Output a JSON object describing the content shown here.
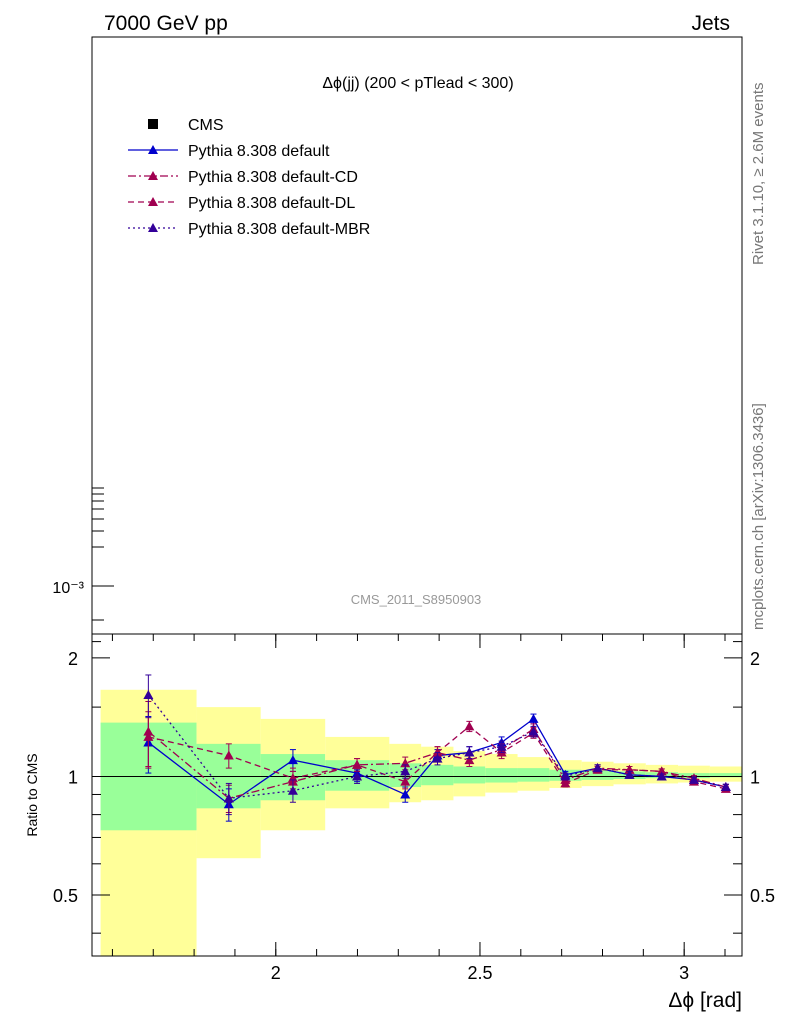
{
  "header": {
    "left": "7000 GeV pp",
    "right": "Jets"
  },
  "side_labels": {
    "rivet": "Rivet 3.1.10, ≥ 2.6M events",
    "mcplots": "mcplots.cern.ch [arXiv:1306.3436]"
  },
  "chart_data": [
    {
      "panel": "main",
      "type": "line",
      "title": "Δϕ(jj) (200 < pTlead <  300)",
      "watermark": "CMS_2011_S8950903",
      "yscale": "log",
      "y_tick_labels": [
        "10⁻³"
      ],
      "legend": {
        "placement": "top-left",
        "entries": [
          {
            "label": "CMS",
            "marker": "square",
            "color": "#000000",
            "line": "none"
          },
          {
            "label": "Pythia 8.308 default",
            "marker": "triangle",
            "color": "#0000cc",
            "line": "solid"
          },
          {
            "label": "Pythia 8.308 default-CD",
            "marker": "triangle",
            "color": "#a00050",
            "line": "dashdot"
          },
          {
            "label": "Pythia 8.308 default-DL",
            "marker": "triangle",
            "color": "#a00050",
            "line": "dashed"
          },
          {
            "label": "Pythia 8.308 default-MBR",
            "marker": "triangle",
            "color": "#330099",
            "line": "dotted"
          }
        ]
      }
    },
    {
      "panel": "ratio",
      "type": "line",
      "xlabel": "Δϕ [rad]",
      "ylabel": "Ratio to CMS",
      "xlim": [
        1.55,
        3.1416
      ],
      "ylim": [
        0.35,
        2.3
      ],
      "x_ticks": [
        2,
        2.5,
        3
      ],
      "x_tick_labels": [
        "2",
        "2.5",
        "3"
      ],
      "y_ticks": [
        0.5,
        1,
        2
      ],
      "y_tick_labels": [
        "0.5",
        "1",
        "2"
      ],
      "reference_line": 1,
      "bands": {
        "edges": [
          1.571,
          1.806,
          1.963,
          2.121,
          2.278,
          2.356,
          2.435,
          2.513,
          2.592,
          2.67,
          2.749,
          2.827,
          2.906,
          2.985,
          3.063,
          3.1416
        ],
        "green_low": [
          0.73,
          0.83,
          0.87,
          0.92,
          0.94,
          0.95,
          0.96,
          0.965,
          0.97,
          0.975,
          0.98,
          0.985,
          0.99,
          0.99,
          0.995
        ],
        "green_high": [
          1.37,
          1.21,
          1.14,
          1.1,
          1.08,
          1.07,
          1.06,
          1.05,
          1.05,
          1.04,
          1.035,
          1.03,
          1.025,
          1.02,
          1.02
        ],
        "yellow_low": [
          0.3,
          0.62,
          0.73,
          0.83,
          0.86,
          0.87,
          0.89,
          0.91,
          0.92,
          0.935,
          0.945,
          0.955,
          0.96,
          0.965,
          0.97
        ],
        "yellow_high": [
          1.66,
          1.5,
          1.4,
          1.26,
          1.21,
          1.19,
          1.16,
          1.14,
          1.12,
          1.1,
          1.09,
          1.08,
          1.07,
          1.065,
          1.06
        ],
        "green_color": "#99ff99",
        "yellow_color": "#ffff99"
      },
      "series": [
        {
          "name": "Pythia 8.308 default",
          "color": "#0000cc",
          "dash": "",
          "x": [
            1.688,
            1.885,
            2.042,
            2.199,
            2.317,
            2.396,
            2.474,
            2.553,
            2.631,
            2.709,
            2.788,
            2.866,
            2.945,
            3.024,
            3.102
          ],
          "y": [
            1.22,
            0.85,
            1.1,
            1.02,
            0.9,
            1.13,
            1.15,
            1.22,
            1.4,
            1.01,
            1.05,
            1.01,
            1.0,
            0.98,
            0.94
          ],
          "err": [
            0.2,
            0.08,
            0.07,
            0.05,
            0.04,
            0.04,
            0.04,
            0.04,
            0.04,
            0.02,
            0.02,
            0.02,
            0.015,
            0.015,
            0.015
          ]
        },
        {
          "name": "Pythia 8.308 default-CD",
          "color": "#a00050",
          "dash": "8,3,2,3",
          "x": [
            1.688,
            1.885,
            2.042,
            2.199,
            2.317,
            2.396,
            2.474,
            2.553,
            2.631,
            2.709,
            2.788,
            2.866,
            2.945,
            3.024,
            3.102
          ],
          "y": [
            1.3,
            0.88,
            0.97,
            1.07,
            1.08,
            1.15,
            1.1,
            1.17,
            1.32,
            0.98,
            1.05,
            1.04,
            1.03,
            0.99,
            0.94
          ],
          "err": [
            0.25,
            0.07,
            0.06,
            0.04,
            0.04,
            0.04,
            0.04,
            0.04,
            0.04,
            0.02,
            0.02,
            0.02,
            0.015,
            0.015,
            0.015
          ]
        },
        {
          "name": "Pythia 8.308 default-DL",
          "color": "#a00050",
          "dash": "6,4",
          "x": [
            1.688,
            1.885,
            2.042,
            2.199,
            2.317,
            2.396,
            2.474,
            2.553,
            2.631,
            2.709,
            2.788,
            2.866,
            2.945,
            3.024,
            3.102
          ],
          "y": [
            1.26,
            1.13,
            0.99,
            1.07,
            0.97,
            1.15,
            1.34,
            1.15,
            1.29,
            0.96,
            1.04,
            1.04,
            1.03,
            0.97,
            0.93
          ],
          "err": [
            0.2,
            0.08,
            0.06,
            0.04,
            0.04,
            0.04,
            0.04,
            0.04,
            0.04,
            0.02,
            0.02,
            0.02,
            0.015,
            0.015,
            0.015
          ]
        },
        {
          "name": "Pythia 8.308 default-MBR",
          "color": "#330099",
          "dash": "2,3",
          "x": [
            1.688,
            1.885,
            2.042,
            2.199,
            2.317,
            2.396,
            2.474,
            2.553,
            2.631,
            2.709,
            2.788,
            2.866,
            2.945,
            3.024,
            3.102
          ],
          "y": [
            1.61,
            0.88,
            0.92,
            1.0,
            1.03,
            1.11,
            1.15,
            1.19,
            1.3,
            1.0,
            1.05,
            1.01,
            1.0,
            0.98,
            0.94
          ],
          "err": [
            0.2,
            0.08,
            0.06,
            0.04,
            0.04,
            0.04,
            0.04,
            0.04,
            0.04,
            0.02,
            0.02,
            0.02,
            0.015,
            0.015,
            0.015
          ]
        }
      ]
    }
  ]
}
